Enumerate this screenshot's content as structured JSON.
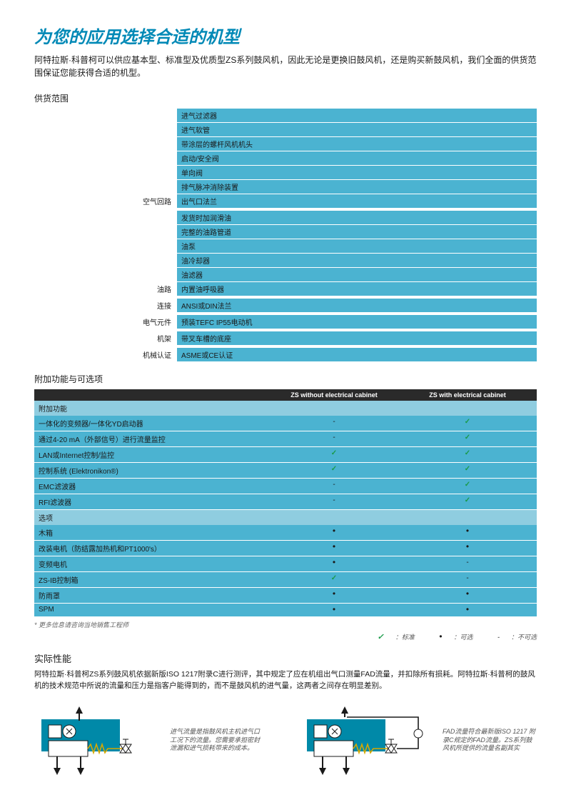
{
  "title": "为您的应用选择合适的机型",
  "intro": "阿特拉斯·科普柯可以供应基本型、标准型及优质型ZS系列鼓风机，因此无论是更换旧鼓风机，还是购买新鼓风机，我们全面的供货范围保证您能获得合适的机型。",
  "supply": {
    "heading": "供货范围",
    "groups": [
      {
        "label": "空气回路",
        "items": [
          "进气过滤器",
          "进气软管",
          "带涂层的螺杆风机机头",
          "启动/安全阀",
          "单向阀",
          "排气脉冲消除装置",
          "出气口法兰"
        ]
      },
      {
        "label": "油路",
        "items": [
          "发货时加润滑油",
          "完整的油路管道",
          "油泵",
          "油冷却器",
          "油滤器",
          "内置油呼吸器"
        ]
      },
      {
        "label": "连接",
        "items": [
          "ANSI或DIN法兰"
        ]
      },
      {
        "label": "电气元件",
        "items": [
          "预装TEFC IP55电动机"
        ]
      },
      {
        "label": "机架",
        "items": [
          "带叉车槽的底座"
        ]
      },
      {
        "label": "机械认证",
        "items": [
          "ASME或CE认证"
        ]
      }
    ]
  },
  "features": {
    "heading": "附加功能与可选项",
    "col1": "ZS without electrical cabinet",
    "col2": "ZS with electrical cabinet",
    "cat1": "附加功能",
    "cat2": "选项",
    "funcs": [
      {
        "label": "一体化的变频器/一体化YD启动器",
        "c1": "dash",
        "c2": "check"
      },
      {
        "label": "通过4-20 mA（外部信号）进行流量监控",
        "c1": "dash",
        "c2": "check"
      },
      {
        "label": "LAN或Internet控制/监控",
        "c1": "check",
        "c2": "check"
      },
      {
        "label": "控制系统 (Elektronikon®)",
        "c1": "check",
        "c2": "check"
      },
      {
        "label": "EMC滤波器",
        "c1": "dash",
        "c2": "check"
      },
      {
        "label": "RFI滤波器",
        "c1": "dash",
        "c2": "check"
      }
    ],
    "opts": [
      {
        "label": "木箱",
        "c1": "dot",
        "c2": "dot"
      },
      {
        "label": "改装电机（防结露加热机和PT1000's）",
        "c1": "dot",
        "c2": "dot"
      },
      {
        "label": "变频电机",
        "c1": "dot",
        "c2": "dash"
      },
      {
        "label": "ZS-IB控制箱",
        "c1": "check",
        "c2": "dash"
      },
      {
        "label": "防雨罩",
        "c1": "dot",
        "c2": "dot"
      },
      {
        "label": "SPM",
        "c1": "dot",
        "c2": "dot"
      }
    ],
    "footnote": "* 更多信息请咨询当地销售工程师",
    "legend_std": "：标准",
    "legend_opt": "：可选",
    "legend_na": "：不可选"
  },
  "perf": {
    "heading": "实际性能",
    "text": "阿特拉斯·科普柯ZS系列鼓风机依据新版ISO 1217附录C进行测评，其中规定了应在机组出气口测量FAD流量，并扣除所有损耗。阿特拉斯·科普柯的鼓风机的技术规范中所说的流量和压力是指客户能得到的，而不是鼓风机的进气量，这两者之间存在明显差别。"
  },
  "diagrams": {
    "caption1": "进气流量是指鼓风机主机进气口工况下的流量。您需要承担密封泄漏和进气损耗带来的成本。",
    "caption2": "FAD流量符合最新版ISO 1217 附录C规定的FAD流量。ZS系列鼓风机所提供的流量名副其实"
  },
  "colors": {
    "accent": "#0089b6",
    "cell": "#4bb3d1",
    "cat": "#8fcde0",
    "headrow": "#2a2a2a",
    "check": "#1a9b4a"
  }
}
